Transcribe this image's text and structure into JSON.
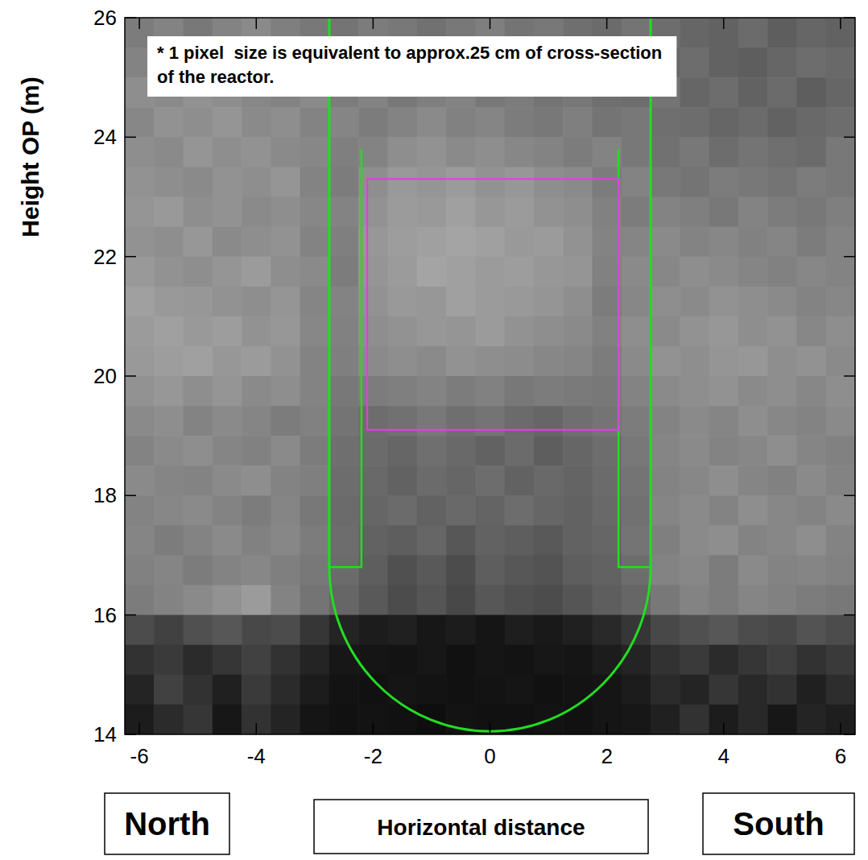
{
  "chart_data": {
    "type": "heatmap",
    "note": "* 1 pixel  size is equivalent to approx.25 cm of cross-section of the reactor.",
    "y_label": "Height OP (m)",
    "x_label": "Horizontal distance",
    "x_left_label": "North",
    "x_right_label": "South",
    "xlim": [
      -6.25,
      6.25
    ],
    "ylim": [
      14,
      26
    ],
    "xticks": [
      -6,
      -4,
      -2,
      0,
      2,
      4,
      6
    ],
    "yticks": [
      14,
      16,
      18,
      20,
      22,
      24,
      26
    ],
    "color_range": [
      0,
      100
    ],
    "x": [
      -6,
      -5.5,
      -5,
      -4.5,
      -4,
      -3.5,
      -3,
      -2.5,
      -2,
      -1.5,
      -1,
      -0.5,
      0,
      0.5,
      1,
      1.5,
      2,
      2.5,
      3,
      3.5,
      4,
      4.5,
      5,
      5.5,
      6
    ],
    "y": [
      25.75,
      25.25,
      24.75,
      24.25,
      23.75,
      23.25,
      22.75,
      22.25,
      21.75,
      21.25,
      20.75,
      20.25,
      19.75,
      19.25,
      18.75,
      18.25,
      17.75,
      17.25,
      16.75,
      16.25,
      15.75,
      15.25,
      14.75,
      14.25
    ],
    "cells": [
      [
        52,
        55,
        50,
        55,
        58,
        53,
        50,
        48,
        52,
        50,
        47,
        50,
        53,
        48,
        50,
        46,
        44,
        48,
        45,
        42,
        40,
        44,
        38,
        42,
        40
      ],
      [
        55,
        58,
        60,
        55,
        57,
        60,
        52,
        50,
        48,
        52,
        55,
        50,
        48,
        52,
        47,
        45,
        50,
        46,
        42,
        45,
        40,
        38,
        42,
        45,
        43
      ],
      [
        60,
        58,
        62,
        60,
        57,
        55,
        58,
        52,
        55,
        50,
        53,
        55,
        50,
        52,
        48,
        50,
        46,
        45,
        48,
        42,
        45,
        40,
        44,
        38,
        42
      ],
      [
        57,
        62,
        60,
        63,
        58,
        60,
        55,
        56,
        52,
        55,
        58,
        54,
        56,
        52,
        50,
        53,
        48,
        50,
        46,
        45,
        42,
        44,
        40,
        43,
        45
      ],
      [
        60,
        58,
        63,
        60,
        62,
        58,
        57,
        53,
        55,
        60,
        62,
        58,
        60,
        57,
        55,
        52,
        55,
        50,
        47,
        50,
        45,
        48,
        46,
        44,
        50
      ],
      [
        62,
        60,
        58,
        62,
        60,
        63,
        55,
        52,
        60,
        65,
        63,
        66,
        62,
        64,
        60,
        58,
        52,
        55,
        50,
        48,
        52,
        50,
        48,
        52,
        50
      ],
      [
        63,
        65,
        60,
        62,
        58,
        60,
        57,
        55,
        62,
        66,
        65,
        68,
        64,
        66,
        62,
        60,
        54,
        52,
        55,
        53,
        50,
        55,
        52,
        50,
        53
      ],
      [
        62,
        60,
        64,
        58,
        60,
        62,
        55,
        53,
        64,
        67,
        68,
        70,
        68,
        65,
        66,
        62,
        55,
        56,
        58,
        55,
        57,
        54,
        56,
        52,
        55
      ],
      [
        65,
        62,
        60,
        63,
        66,
        60,
        58,
        52,
        63,
        66,
        70,
        68,
        66,
        67,
        64,
        63,
        54,
        58,
        57,
        60,
        58,
        56,
        54,
        57,
        55
      ],
      [
        68,
        65,
        64,
        62,
        60,
        63,
        56,
        55,
        62,
        65,
        64,
        68,
        66,
        65,
        63,
        60,
        52,
        57,
        60,
        58,
        62,
        60,
        58,
        55,
        57
      ],
      [
        66,
        68,
        65,
        67,
        62,
        64,
        57,
        54,
        60,
        62,
        64,
        63,
        66,
        62,
        60,
        58,
        54,
        60,
        58,
        62,
        64,
        60,
        62,
        57,
        60
      ],
      [
        65,
        67,
        68,
        64,
        66,
        62,
        55,
        53,
        58,
        60,
        58,
        62,
        60,
        59,
        57,
        56,
        52,
        58,
        62,
        60,
        63,
        64,
        60,
        62,
        58
      ],
      [
        62,
        64,
        60,
        63,
        58,
        60,
        55,
        50,
        52,
        53,
        55,
        52,
        54,
        50,
        52,
        51,
        50,
        55,
        58,
        60,
        62,
        58,
        60,
        57,
        60
      ],
      [
        58,
        60,
        55,
        58,
        56,
        52,
        54,
        48,
        45,
        47,
        50,
        46,
        48,
        44,
        42,
        46,
        48,
        52,
        55,
        58,
        56,
        60,
        57,
        55,
        58
      ],
      [
        55,
        58,
        60,
        56,
        54,
        58,
        52,
        46,
        44,
        42,
        46,
        43,
        40,
        44,
        38,
        42,
        45,
        50,
        56,
        58,
        55,
        57,
        60,
        56,
        54
      ],
      [
        58,
        56,
        55,
        58,
        60,
        55,
        53,
        45,
        43,
        40,
        44,
        42,
        45,
        40,
        43,
        41,
        44,
        48,
        55,
        57,
        60,
        56,
        54,
        58,
        55
      ],
      [
        55,
        57,
        58,
        55,
        52,
        56,
        50,
        44,
        42,
        44,
        40,
        43,
        41,
        45,
        42,
        40,
        43,
        47,
        56,
        58,
        55,
        60,
        57,
        55,
        58
      ],
      [
        56,
        52,
        55,
        58,
        54,
        57,
        52,
        45,
        40,
        38,
        42,
        35,
        40,
        38,
        36,
        40,
        42,
        48,
        53,
        58,
        60,
        55,
        57,
        60,
        55
      ],
      [
        54,
        56,
        52,
        55,
        57,
        53,
        50,
        44,
        38,
        32,
        36,
        30,
        38,
        35,
        33,
        38,
        40,
        45,
        55,
        57,
        52,
        58,
        55,
        56,
        54
      ],
      [
        52,
        55,
        58,
        62,
        66,
        55,
        48,
        42,
        36,
        30,
        34,
        28,
        35,
        32,
        30,
        34,
        38,
        42,
        50,
        55,
        52,
        56,
        54,
        52,
        50
      ],
      [
        30,
        25,
        32,
        35,
        28,
        30,
        20,
        12,
        8,
        10,
        6,
        8,
        5,
        9,
        7,
        10,
        14,
        20,
        28,
        32,
        35,
        30,
        28,
        33,
        30
      ],
      [
        18,
        22,
        15,
        20,
        25,
        18,
        12,
        6,
        5,
        4,
        6,
        3,
        5,
        4,
        6,
        5,
        8,
        12,
        18,
        22,
        15,
        20,
        24,
        18,
        22
      ],
      [
        12,
        25,
        18,
        10,
        22,
        15,
        8,
        4,
        3,
        5,
        4,
        3,
        4,
        5,
        3,
        4,
        5,
        8,
        15,
        12,
        20,
        14,
        18,
        10,
        16
      ],
      [
        8,
        15,
        20,
        6,
        18,
        12,
        5,
        3,
        4,
        3,
        2,
        4,
        3,
        3,
        4,
        3,
        5,
        6,
        10,
        18,
        8,
        14,
        6,
        12,
        9
      ]
    ]
  }
}
